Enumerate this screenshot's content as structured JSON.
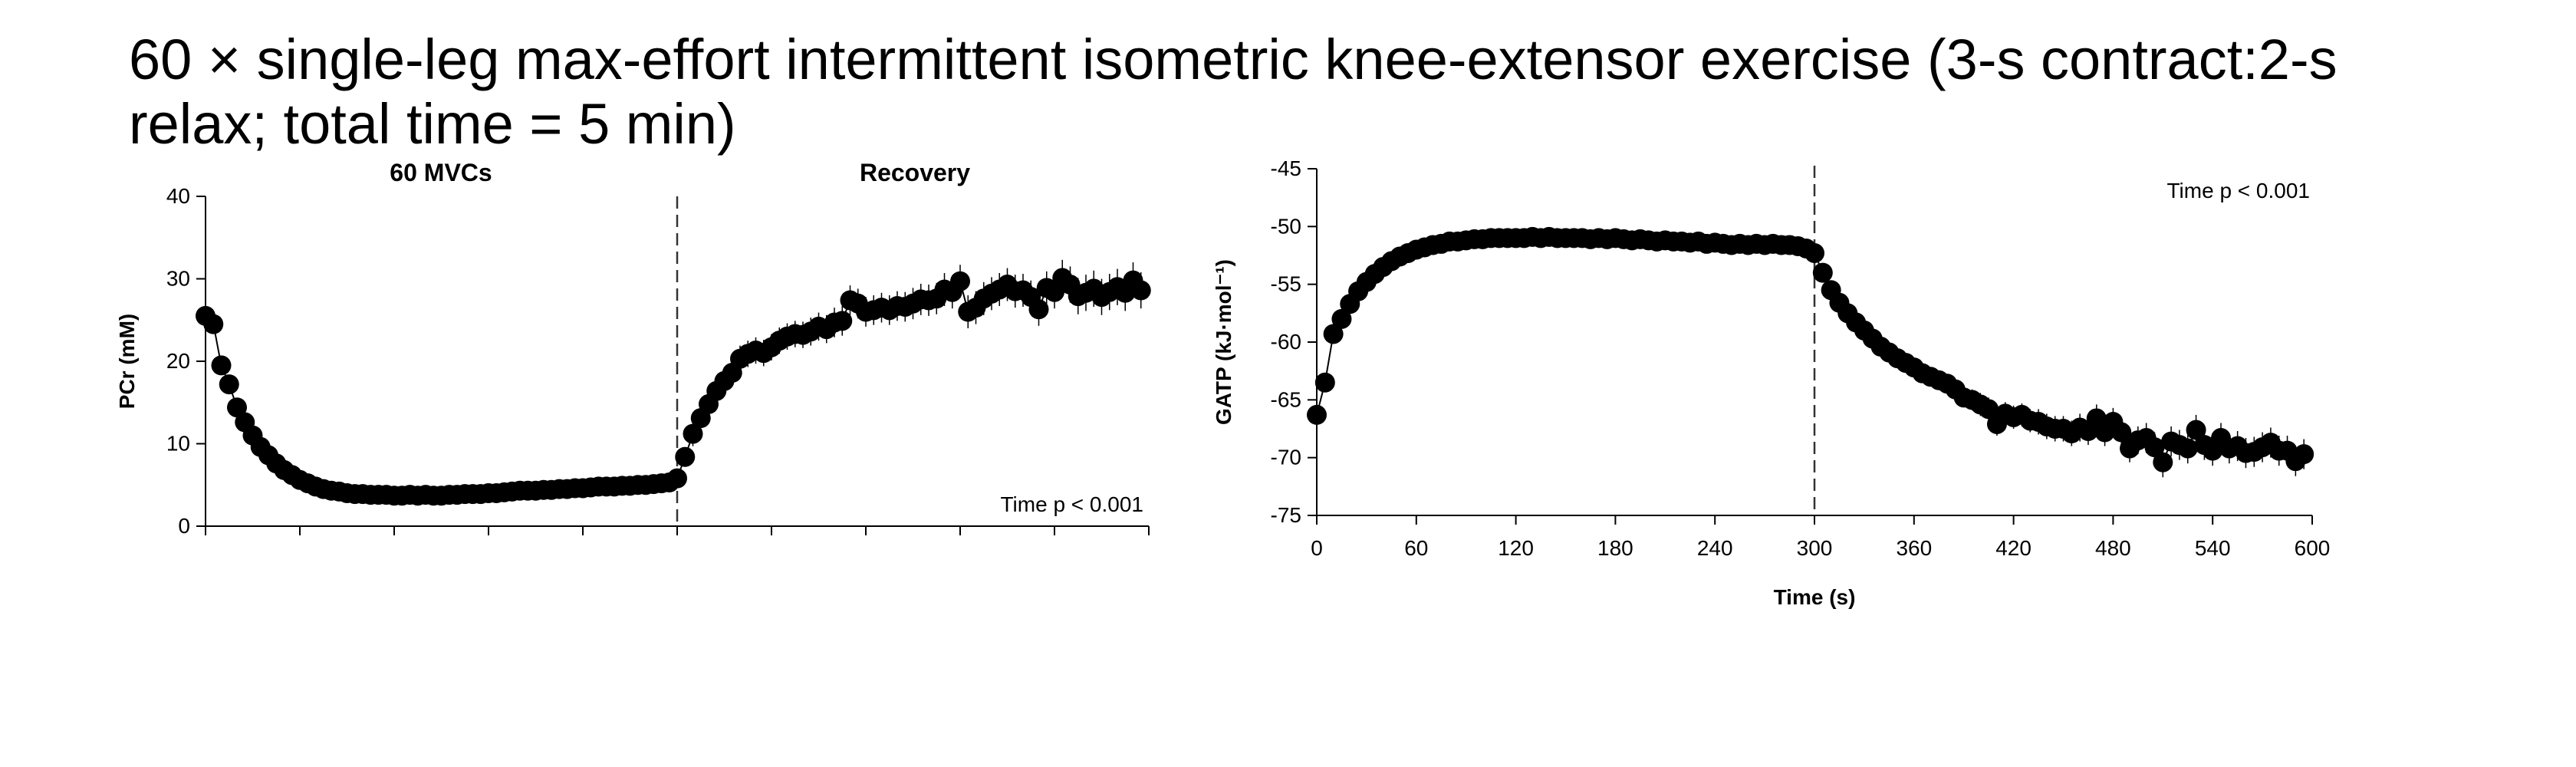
{
  "slide": {
    "title": "60 × single-leg max-effort intermittent isometric knee-extensor exercise (3-s contract:2-s relax; total time = 5 min)"
  },
  "chart_data": [
    {
      "type": "scatter",
      "title": "",
      "xlabel": "",
      "ylabel": "PCr (mM)",
      "ylim": [
        0,
        40
      ],
      "yticks": [
        "0",
        "10",
        "20",
        "30",
        "40"
      ],
      "xlim": [
        0,
        600
      ],
      "phase_labels": [
        "60 MVCs",
        "Recovery"
      ],
      "annotation": "Time p < 0.001",
      "divider_x": 300,
      "grid": false,
      "series": [
        {
          "x": [
            0,
            5,
            10,
            15,
            20,
            25,
            30,
            35,
            40,
            45,
            50,
            55,
            60,
            65,
            70,
            75,
            80,
            85,
            90,
            95,
            100,
            105,
            110,
            115,
            120,
            125,
            130,
            135,
            140,
            145,
            150,
            155,
            160,
            165,
            170,
            175,
            180,
            185,
            190,
            195,
            200,
            205,
            210,
            215,
            220,
            225,
            230,
            235,
            240,
            245,
            250,
            255,
            260,
            265,
            270,
            275,
            280,
            285,
            290,
            295,
            300,
            305,
            310,
            315,
            320,
            325,
            330,
            335,
            340,
            345,
            350,
            355,
            360,
            365,
            370,
            375,
            380,
            385,
            390,
            395,
            400,
            405,
            410,
            415,
            420,
            425,
            430,
            435,
            440,
            445,
            450,
            455,
            460,
            465,
            470,
            475,
            480,
            485,
            490,
            495,
            500,
            505,
            510,
            515,
            520,
            525,
            530,
            535,
            540,
            545,
            550,
            555,
            560,
            565,
            570,
            575,
            580,
            585,
            590,
            595
          ],
          "values": [
            25.5,
            24.5,
            19.5,
            17.2,
            14.4,
            12.6,
            11.0,
            9.6,
            8.6,
            7.6,
            6.8,
            6.2,
            5.6,
            5.2,
            4.8,
            4.5,
            4.3,
            4.2,
            4.0,
            3.9,
            3.9,
            3.8,
            3.8,
            3.8,
            3.7,
            3.7,
            3.8,
            3.7,
            3.8,
            3.7,
            3.7,
            3.8,
            3.8,
            3.9,
            3.9,
            3.9,
            4.0,
            4.0,
            4.1,
            4.2,
            4.3,
            4.3,
            4.3,
            4.4,
            4.4,
            4.5,
            4.5,
            4.6,
            4.6,
            4.7,
            4.8,
            4.8,
            4.8,
            4.9,
            4.9,
            5.0,
            5.0,
            5.1,
            5.2,
            5.3,
            5.8,
            8.4,
            11.2,
            13.1,
            14.8,
            16.4,
            17.6,
            18.6,
            20.3,
            20.9,
            21.3,
            21.0,
            21.7,
            22.5,
            23.0,
            23.3,
            23.2,
            23.6,
            24.2,
            23.9,
            24.7,
            24.9,
            27.4,
            27.0,
            26.0,
            26.2,
            26.5,
            26.2,
            26.7,
            26.6,
            27.0,
            27.5,
            27.4,
            27.6,
            28.7,
            28.4,
            29.7,
            26.0,
            26.5,
            27.6,
            28.2,
            28.7,
            29.3,
            28.5,
            28.6,
            27.8,
            26.3,
            28.9,
            28.4,
            30.1,
            29.3,
            27.9,
            28.3,
            28.8,
            27.8,
            28.4,
            29.0,
            28.3,
            29.8,
            28.6
          ],
          "error": [
            0.8,
            0.8,
            0.8,
            0.8,
            0.8,
            0.7,
            0.7,
            0.6,
            0.6,
            0.6,
            0.5,
            0.5,
            0.5,
            0.5,
            0.5,
            0.5,
            0.5,
            0.5,
            0.5,
            0.5,
            0.5,
            0.5,
            0.5,
            0.5,
            0.5,
            0.5,
            0.5,
            0.5,
            0.5,
            0.5,
            0.5,
            0.5,
            0.5,
            0.5,
            0.5,
            0.5,
            0.5,
            0.5,
            0.5,
            0.5,
            0.5,
            0.5,
            0.5,
            0.5,
            0.5,
            0.5,
            0.5,
            0.5,
            0.5,
            0.5,
            0.5,
            0.5,
            0.5,
            0.5,
            0.5,
            0.5,
            0.5,
            0.5,
            0.5,
            0.5,
            0.8,
            1.2,
            1.5,
            1.5,
            1.5,
            1.5,
            1.5,
            1.5,
            1.6,
            1.6,
            1.6,
            1.6,
            1.6,
            1.6,
            1.6,
            1.6,
            1.6,
            1.7,
            1.7,
            1.7,
            1.8,
            1.8,
            1.8,
            1.8,
            1.8,
            1.8,
            1.8,
            1.8,
            1.8,
            1.8,
            1.9,
            1.9,
            1.9,
            1.9,
            2.0,
            2.0,
            2.0,
            2.0,
            2.0,
            2.0,
            2.0,
            2.0,
            2.0,
            2.0,
            2.0,
            2.0,
            2.0,
            2.0,
            2.0,
            2.2,
            2.2,
            2.2,
            2.2,
            2.2,
            2.2,
            2.2,
            2.2,
            2.2,
            2.2,
            2.2
          ]
        }
      ]
    },
    {
      "type": "scatter",
      "title": "",
      "xlabel": "Time (s)",
      "ylabel": "GATP (kJ·mol⁻¹)",
      "ylim": [
        -75,
        -45
      ],
      "yticks": [
        "-45",
        "-50",
        "-55",
        "-60",
        "-65",
        "-70",
        "-75"
      ],
      "xlim": [
        0,
        600
      ],
      "xticks": [
        "0",
        "60",
        "120",
        "180",
        "240",
        "300",
        "360",
        "420",
        "480",
        "540",
        "600"
      ],
      "annotation": "Time p < 0.001",
      "divider_x": 300,
      "grid": false,
      "series": [
        {
          "x": [
            0,
            5,
            10,
            15,
            20,
            25,
            30,
            35,
            40,
            45,
            50,
            55,
            60,
            65,
            70,
            75,
            80,
            85,
            90,
            95,
            100,
            105,
            110,
            115,
            120,
            125,
            130,
            135,
            140,
            145,
            150,
            155,
            160,
            165,
            170,
            175,
            180,
            185,
            190,
            195,
            200,
            205,
            210,
            215,
            220,
            225,
            230,
            235,
            240,
            245,
            250,
            255,
            260,
            265,
            270,
            275,
            280,
            285,
            290,
            295,
            300,
            305,
            310,
            315,
            320,
            325,
            330,
            335,
            340,
            345,
            350,
            355,
            360,
            365,
            370,
            375,
            380,
            385,
            390,
            395,
            400,
            405,
            410,
            415,
            420,
            425,
            430,
            435,
            440,
            445,
            450,
            455,
            460,
            465,
            470,
            475,
            480,
            485,
            490,
            495,
            500,
            505,
            510,
            515,
            520,
            525,
            530,
            535,
            540,
            545,
            550,
            555,
            560,
            565,
            570,
            575,
            580,
            585,
            590,
            595
          ],
          "values": [
            -66.3,
            -63.5,
            -59.3,
            -58.0,
            -56.7,
            -55.6,
            -54.8,
            -54.1,
            -53.5,
            -53.0,
            -52.6,
            -52.3,
            -52.0,
            -51.8,
            -51.6,
            -51.5,
            -51.3,
            -51.3,
            -51.2,
            -51.1,
            -51.1,
            -51.0,
            -51.0,
            -51.0,
            -51.0,
            -51.0,
            -50.9,
            -51.0,
            -50.9,
            -51.0,
            -51.0,
            -51.0,
            -51.0,
            -51.1,
            -51.0,
            -51.1,
            -51.0,
            -51.1,
            -51.2,
            -51.1,
            -51.2,
            -51.3,
            -51.2,
            -51.3,
            -51.3,
            -51.4,
            -51.3,
            -51.5,
            -51.4,
            -51.5,
            -51.6,
            -51.5,
            -51.6,
            -51.5,
            -51.6,
            -51.5,
            -51.6,
            -51.6,
            -51.7,
            -51.9,
            -52.3,
            -54.0,
            -55.5,
            -56.6,
            -57.5,
            -58.3,
            -59.0,
            -59.7,
            -60.4,
            -60.9,
            -61.4,
            -61.8,
            -62.2,
            -62.7,
            -63.0,
            -63.3,
            -63.6,
            -64.1,
            -64.8,
            -65.0,
            -65.4,
            -65.8,
            -67.1,
            -66.2,
            -66.5,
            -66.3,
            -66.8,
            -66.9,
            -67.3,
            -67.5,
            -67.5,
            -67.9,
            -67.4,
            -67.7,
            -66.6,
            -67.8,
            -66.9,
            -67.8,
            -69.2,
            -68.5,
            -68.3,
            -69.1,
            -70.4,
            -68.6,
            -68.9,
            -69.2,
            -67.6,
            -68.9,
            -69.4,
            -68.3,
            -69.2,
            -69.0,
            -69.6,
            -69.5,
            -69.1,
            -68.7,
            -69.4,
            -69.4,
            -70.3,
            -69.7
          ],
          "error": [
            0.3,
            0.3,
            0.3,
            0.3,
            0.3,
            0.3,
            0.3,
            0.3,
            0.3,
            0.3,
            0.3,
            0.3,
            0.3,
            0.3,
            0.3,
            0.3,
            0.3,
            0.3,
            0.3,
            0.3,
            0.3,
            0.3,
            0.3,
            0.3,
            0.3,
            0.3,
            0.3,
            0.3,
            0.3,
            0.3,
            0.3,
            0.3,
            0.3,
            0.3,
            0.3,
            0.3,
            0.3,
            0.3,
            0.3,
            0.3,
            0.3,
            0.3,
            0.3,
            0.3,
            0.3,
            0.3,
            0.3,
            0.3,
            0.3,
            0.3,
            0.3,
            0.3,
            0.3,
            0.3,
            0.3,
            0.3,
            0.3,
            0.3,
            0.3,
            0.3,
            0.3,
            0.4,
            0.5,
            0.5,
            0.5,
            0.5,
            0.5,
            0.5,
            0.5,
            0.6,
            0.6,
            0.6,
            0.6,
            0.7,
            0.7,
            0.7,
            0.8,
            0.8,
            0.8,
            0.9,
            1.0,
            1.0,
            1.0,
            1.0,
            1.0,
            1.0,
            1.0,
            1.1,
            1.1,
            1.1,
            1.1,
            1.1,
            1.2,
            1.2,
            1.2,
            1.2,
            1.2,
            1.2,
            1.2,
            1.2,
            1.3,
            1.3,
            1.3,
            1.3,
            1.3,
            1.3,
            1.3,
            1.3,
            1.3,
            1.3,
            1.3,
            1.3,
            1.3,
            1.3,
            1.3,
            1.3,
            1.3,
            1.3,
            1.3,
            1.3
          ]
        }
      ]
    }
  ]
}
